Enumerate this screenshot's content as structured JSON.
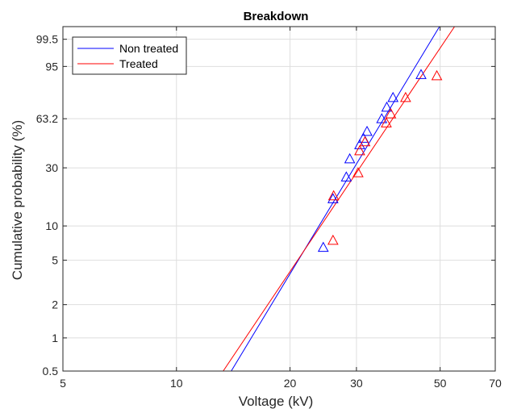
{
  "chart_data": {
    "type": "scatter",
    "title": "Breakdown",
    "xlabel": "Voltage (kV)",
    "ylabel": "Cumulative probability (%)",
    "x_scale": "log",
    "y_scale": "weibull",
    "xlim": [
      5,
      70
    ],
    "ylim": [
      0.5,
      99.9
    ],
    "x_ticks": [
      5,
      10,
      20,
      30,
      50,
      70
    ],
    "y_ticks": [
      0.5,
      1,
      2,
      5,
      10,
      30,
      63.2,
      95,
      99.5
    ],
    "x_tick_labels": [
      "5",
      "10",
      "20",
      "30",
      "50",
      "70"
    ],
    "y_tick_labels": [
      "0.5",
      "1",
      "2",
      "5",
      "10",
      "30",
      "63.2",
      "95",
      "99.5"
    ],
    "grid": true,
    "legend_position": "top-left",
    "series": [
      {
        "name": "Non treated",
        "color": "#0000ff",
        "marker": "triangle",
        "points": [
          {
            "x": 24.5,
            "y": 6.5
          },
          {
            "x": 26.0,
            "y": 17.0
          },
          {
            "x": 28.2,
            "y": 25.5
          },
          {
            "x": 28.8,
            "y": 35.0
          },
          {
            "x": 30.6,
            "y": 44.0
          },
          {
            "x": 31.3,
            "y": 48.5
          },
          {
            "x": 32.0,
            "y": 53.5
          },
          {
            "x": 35.0,
            "y": 63.2
          },
          {
            "x": 36.1,
            "y": 72.0
          },
          {
            "x": 37.5,
            "y": 79.0
          },
          {
            "x": 44.5,
            "y": 92.0
          }
        ],
        "fit_line": [
          {
            "x": 13.97,
            "y": 0.5
          },
          {
            "x": 49.8,
            "y": 99.9
          }
        ]
      },
      {
        "name": "Treated",
        "color": "#ff0000",
        "marker": "triangle",
        "points": [
          {
            "x": 26.0,
            "y": 7.5
          },
          {
            "x": 26.1,
            "y": 18.0
          },
          {
            "x": 30.3,
            "y": 27.5
          },
          {
            "x": 30.6,
            "y": 40.0
          },
          {
            "x": 31.6,
            "y": 46.0
          },
          {
            "x": 36.0,
            "y": 60.0
          },
          {
            "x": 37.0,
            "y": 67.0
          },
          {
            "x": 40.5,
            "y": 79.0
          },
          {
            "x": 49.0,
            "y": 91.5
          }
        ],
        "fit_line": [
          {
            "x": 13.3,
            "y": 0.5
          },
          {
            "x": 54.6,
            "y": 99.9
          }
        ]
      }
    ]
  }
}
